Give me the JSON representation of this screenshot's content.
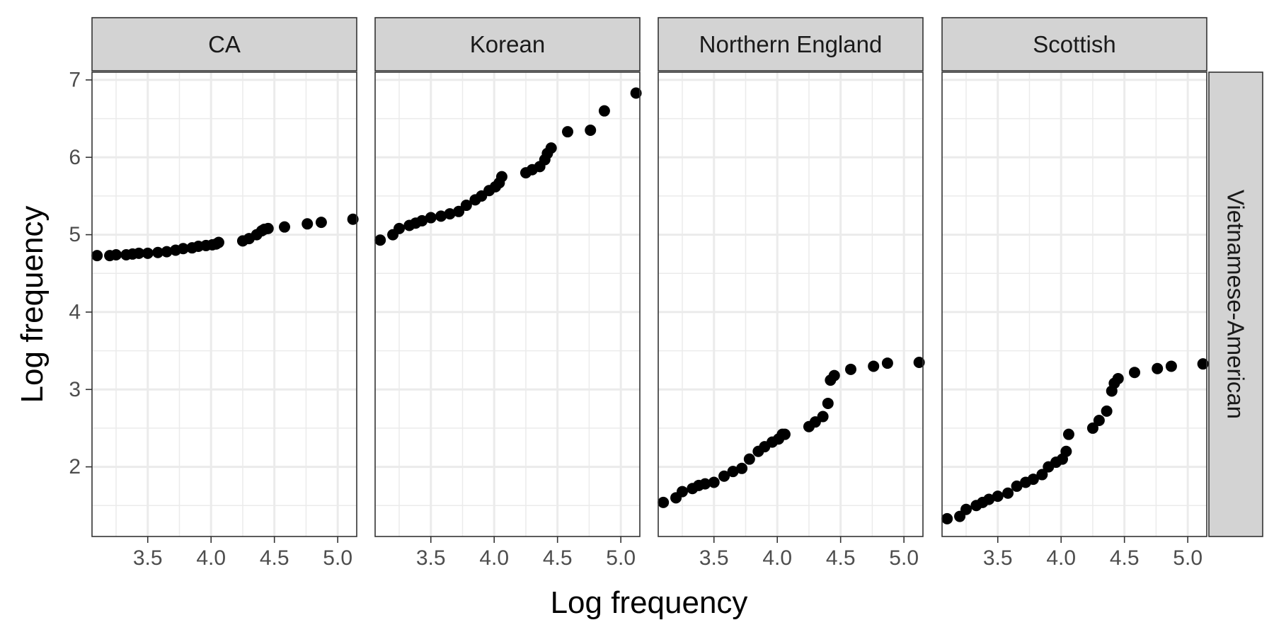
{
  "chart_data": {
    "type": "scatter",
    "xlabel": "Log frequency",
    "ylabel": "Log frequency",
    "xlim": [
      3.06,
      5.15
    ],
    "ylim": [
      1.1,
      7.1
    ],
    "x_ticks": [
      3.5,
      4.0,
      4.5,
      5.0
    ],
    "x_tick_labels": [
      "3.5",
      "4.0",
      "4.5",
      "5.0"
    ],
    "y_ticks": [
      2,
      3,
      4,
      5,
      6,
      7
    ],
    "y_tick_labels": [
      "2",
      "3",
      "4",
      "5",
      "6",
      "7"
    ],
    "row_strip": "Vietnamese-American",
    "grid": true,
    "legend": "none",
    "x": [
      3.1,
      3.2,
      3.25,
      3.33,
      3.38,
      3.43,
      3.5,
      3.58,
      3.65,
      3.72,
      3.78,
      3.85,
      3.9,
      3.96,
      4.01,
      4.04,
      4.06,
      4.25,
      4.3,
      4.36,
      4.4,
      4.42,
      4.45,
      4.58,
      4.76,
      4.87,
      5.12
    ],
    "panels": [
      {
        "name": "CA",
        "y": [
          4.73,
          4.73,
          4.74,
          4.74,
          4.75,
          4.76,
          4.76,
          4.77,
          4.78,
          4.8,
          4.82,
          4.83,
          4.85,
          4.86,
          4.87,
          4.88,
          4.9,
          4.92,
          4.95,
          5.0,
          5.05,
          5.07,
          5.08,
          5.1,
          5.14,
          5.16,
          5.2
        ]
      },
      {
        "name": "Korean",
        "y": [
          4.93,
          5.0,
          5.08,
          5.12,
          5.15,
          5.18,
          5.22,
          5.24,
          5.27,
          5.3,
          5.38,
          5.45,
          5.5,
          5.57,
          5.62,
          5.67,
          5.75,
          5.8,
          5.84,
          5.88,
          5.97,
          6.05,
          6.12,
          6.33,
          6.35,
          6.6,
          6.83
        ]
      },
      {
        "name": "Northern England",
        "y": [
          1.54,
          1.6,
          1.68,
          1.72,
          1.76,
          1.78,
          1.8,
          1.88,
          1.94,
          1.98,
          2.1,
          2.2,
          2.26,
          2.32,
          2.36,
          2.42,
          2.42,
          2.52,
          2.58,
          2.65,
          2.82,
          3.12,
          3.18,
          3.26,
          3.3,
          3.34,
          3.35
        ]
      },
      {
        "name": "Scottish",
        "y": [
          1.33,
          1.36,
          1.45,
          1.5,
          1.54,
          1.58,
          1.62,
          1.66,
          1.75,
          1.8,
          1.84,
          1.9,
          2.0,
          2.06,
          2.1,
          2.2,
          2.42,
          2.5,
          2.6,
          2.72,
          2.98,
          3.08,
          3.14,
          3.22,
          3.27,
          3.3,
          3.33
        ]
      }
    ]
  }
}
